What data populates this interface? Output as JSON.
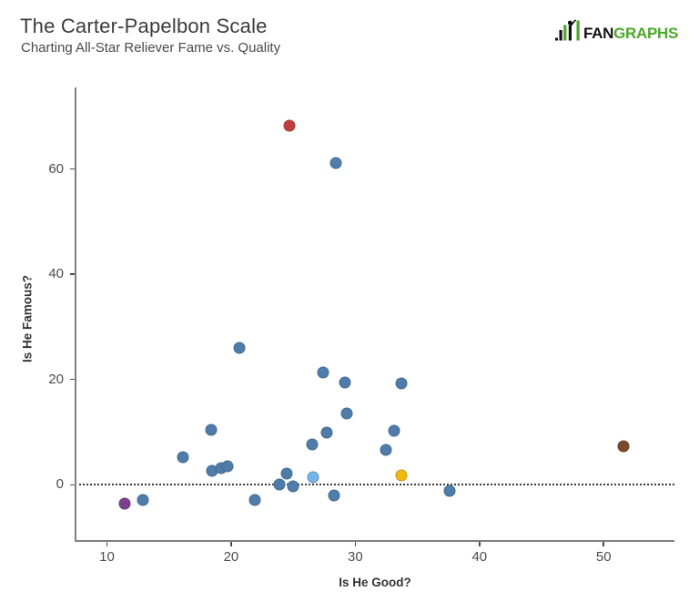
{
  "header": {
    "title": "The Carter-Papelbon Scale",
    "subtitle": "Charting All-Star Reliever Fame vs. Quality"
  },
  "logo": {
    "fan": "FAN",
    "graphs": "GRAPHS",
    "black": "#121212",
    "green": "#4aa82a",
    "icon": "fangraphs-batter-bars-icon"
  },
  "chart_data": {
    "type": "scatter",
    "title": "The Carter-Papelbon Scale",
    "subtitle": "Charting All-Star Reliever Fame vs. Quality",
    "xlabel": "Is He Good?",
    "ylabel": "Is He Famous?",
    "xlim": [
      7.4,
      55.7
    ],
    "ylim": [
      -10.5,
      75.5
    ],
    "x_ticks": [
      10,
      20,
      30,
      40,
      50
    ],
    "y_ticks": [
      0,
      20,
      40,
      60
    ],
    "grid": false,
    "legend": false,
    "zero_reference_line": {
      "y": 0,
      "style": "dotted",
      "color": "#3c3c3c"
    },
    "axis_color": "#808080",
    "palette": {
      "blue": "#4e7dab",
      "red": "#c23b3e",
      "purple": "#7c3f8d",
      "yellow": "#f0b90e",
      "light_blue": "#74b2ea",
      "brown": "#7a4a2b"
    },
    "points": [
      {
        "x": 24.7,
        "y": 68.3,
        "color": "red"
      },
      {
        "x": 28.4,
        "y": 61.2,
        "color": "blue"
      },
      {
        "x": 20.7,
        "y": 26.0,
        "color": "blue"
      },
      {
        "x": 27.4,
        "y": 21.3,
        "color": "blue"
      },
      {
        "x": 29.2,
        "y": 19.5,
        "color": "blue"
      },
      {
        "x": 33.7,
        "y": 19.3,
        "color": "blue"
      },
      {
        "x": 29.3,
        "y": 13.5,
        "color": "blue"
      },
      {
        "x": 18.4,
        "y": 10.4,
        "color": "blue"
      },
      {
        "x": 27.7,
        "y": 9.9,
        "color": "blue"
      },
      {
        "x": 33.1,
        "y": 10.3,
        "color": "blue"
      },
      {
        "x": 26.5,
        "y": 7.6,
        "color": "blue"
      },
      {
        "x": 16.1,
        "y": 5.2,
        "color": "blue"
      },
      {
        "x": 32.5,
        "y": 6.6,
        "color": "blue"
      },
      {
        "x": 18.5,
        "y": 2.7,
        "color": "blue"
      },
      {
        "x": 19.2,
        "y": 3.1,
        "color": "blue"
      },
      {
        "x": 19.7,
        "y": 3.5,
        "color": "blue"
      },
      {
        "x": 24.5,
        "y": 2.1,
        "color": "blue"
      },
      {
        "x": 26.6,
        "y": 1.5,
        "color": "light_blue"
      },
      {
        "x": 23.9,
        "y": 0.1,
        "color": "blue"
      },
      {
        "x": 25.0,
        "y": -0.3,
        "color": "blue"
      },
      {
        "x": 11.4,
        "y": -3.5,
        "color": "purple"
      },
      {
        "x": 12.9,
        "y": -2.9,
        "color": "blue"
      },
      {
        "x": 21.9,
        "y": -2.8,
        "color": "blue"
      },
      {
        "x": 28.3,
        "y": -2.0,
        "color": "blue"
      },
      {
        "x": 33.7,
        "y": 1.7,
        "color": "yellow"
      },
      {
        "x": 37.6,
        "y": -1.1,
        "color": "blue"
      },
      {
        "x": 51.6,
        "y": 7.4,
        "color": "brown"
      }
    ]
  }
}
